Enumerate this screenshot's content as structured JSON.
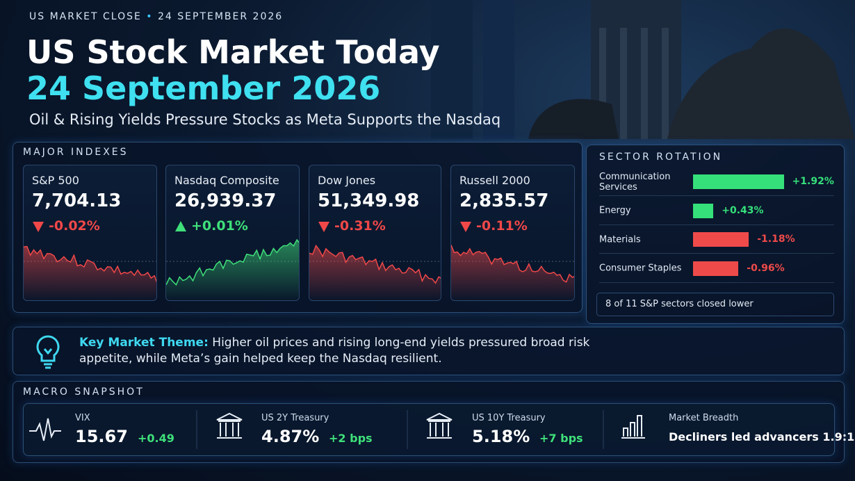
{
  "header": {
    "kicker": "US MARKET CLOSE",
    "date": "24 SEPTEMBER 2026",
    "title": "US Stock Market Today",
    "title_date": "24 September 2026",
    "subtitle": "Oil & Rising Yields Pressure Stocks as Meta Supports the Nasdaq"
  },
  "indexes": {
    "title": "MAJOR INDEXES",
    "items": [
      {
        "name": "S&P 500",
        "value": "7,704.13",
        "change": "-0.02%"
      },
      {
        "name": "Nasdaq Composite",
        "value": "26,939.37",
        "change": "+0.01%"
      },
      {
        "name": "Dow Jones",
        "value": "51,349.98",
        "change": "-0.31%"
      },
      {
        "name": "Russell 2000",
        "value": "2,835.57",
        "change": "-0.11%"
      }
    ]
  },
  "sectors": {
    "title": "SECTOR ROTATION",
    "categories": [
      "Communication Services",
      "Energy",
      "Materials",
      "Consumer Staples"
    ],
    "values": [
      1.92,
      0.43,
      -1.18,
      -0.96
    ],
    "value_labels": [
      "+1.92%",
      "+0.43%",
      "-1.18%",
      "-0.96%"
    ],
    "note": "8 of 11 S&P sectors closed lower"
  },
  "theme": {
    "label": "Key Market Theme:",
    "text": "Higher oil prices and rising long-end yields pressured broad risk appetite, while Meta’s gain helped keep the Nasdaq resilient."
  },
  "macro": {
    "title": "MACRO SNAPSHOT",
    "items": [
      {
        "name": "VIX",
        "value": "15.67",
        "change": "+0.49"
      },
      {
        "name": "US 2Y Treasury",
        "value": "4.87%",
        "change": "+2 bps"
      },
      {
        "name": "US 10Y Treasury",
        "value": "5.18%",
        "change": "+7 bps"
      },
      {
        "name": "Market Breadth",
        "value": "Decliners led advancers 1.9:1"
      }
    ]
  }
}
